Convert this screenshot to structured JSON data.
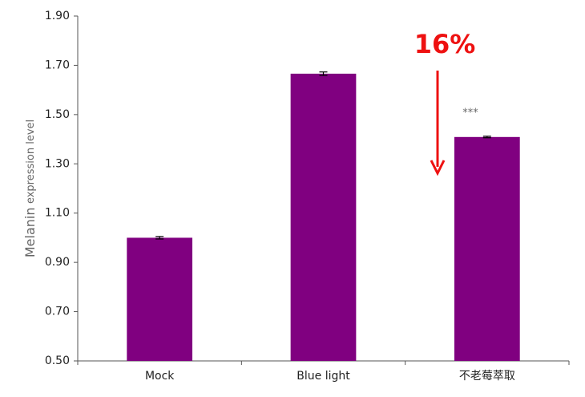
{
  "chart_data": {
    "type": "bar",
    "y_label": [
      "Melanin",
      "expression level"
    ],
    "categories": [
      "Mock",
      "Blue light",
      "不老莓萃取"
    ],
    "values": [
      1.0,
      1.666,
      1.409
    ],
    "errors": [
      0.005,
      0.007,
      0.003
    ],
    "color": "#800080",
    "ylim": [
      0.5,
      1.9
    ],
    "yticks": [
      {
        "value": 0.5,
        "label": "0.50"
      },
      {
        "value": 0.7,
        "label": "0.70"
      },
      {
        "value": 0.9,
        "label": "0.90"
      },
      {
        "value": 1.1,
        "label": "1.10"
      },
      {
        "value": 1.3,
        "label": "1.30"
      },
      {
        "value": 1.5,
        "label": "1.50"
      },
      {
        "value": 1.7,
        "label": "1.70"
      },
      {
        "value": 1.9,
        "label": "1.90"
      }
    ],
    "grid": false,
    "annotations": [
      "16%",
      "***"
    ]
  }
}
